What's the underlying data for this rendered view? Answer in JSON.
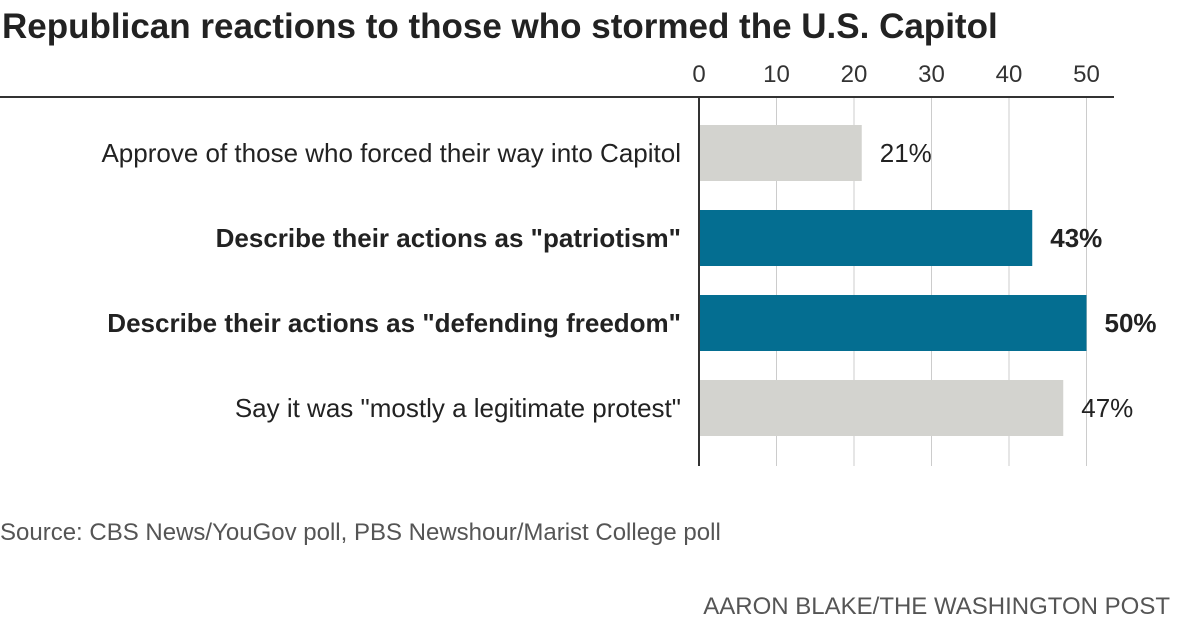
{
  "chart_data": {
    "type": "bar",
    "orientation": "horizontal",
    "title": "Republican reactions to those who stormed the U.S. Capitol",
    "categories": [
      "Approve of those who forced their way into Capitol",
      "Describe their actions as \"patriotism\"",
      "Describe their actions as \"defending freedom\"",
      "Say it was \"mostly a legitimate protest\""
    ],
    "values": [
      21,
      43,
      50,
      47
    ],
    "value_labels": [
      "21%",
      "43%",
      "50%",
      "47%"
    ],
    "highlighted": [
      false,
      true,
      true,
      false
    ],
    "xlim": [
      0,
      50
    ],
    "xticks": [
      0,
      10,
      20,
      30,
      40,
      50
    ],
    "tick_labels": [
      "0",
      "10",
      "20",
      "30",
      "40",
      "50"
    ],
    "axis_position": "top",
    "grid": true,
    "colors": {
      "highlight": "#046e91",
      "default": "#d3d3cf",
      "grid": "#cccccc",
      "axis": "#333333"
    }
  },
  "footer": {
    "source": "Source: CBS News/YouGov poll, PBS Newshour/Marist College poll",
    "credit": "AARON BLAKE/THE WASHINGTON POST"
  }
}
